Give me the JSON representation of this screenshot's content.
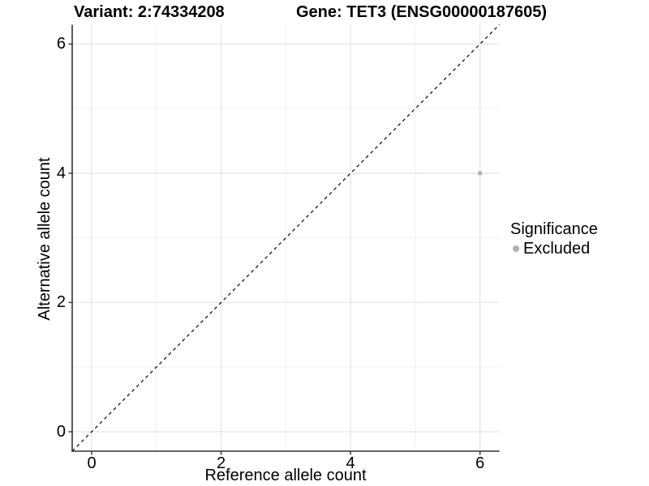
{
  "chart_data": {
    "type": "scatter",
    "titles": {
      "left": "Variant: 2:74334208",
      "right": "Gene: TET3 (ENSG00000187605)"
    },
    "xlabel": "Reference allele count",
    "ylabel": "Alternative allele count",
    "xlim": [
      -0.3,
      6.3
    ],
    "ylim": [
      -0.3,
      6.3
    ],
    "x_major_ticks": [
      0,
      2,
      4,
      6
    ],
    "y_major_ticks": [
      0,
      2,
      4,
      6
    ],
    "x_minor_ticks": [
      1,
      3,
      5
    ],
    "y_minor_ticks": [
      1,
      3,
      5
    ],
    "grid": "major+minor",
    "legend": {
      "title": "Significance",
      "position": "right",
      "items": [
        {
          "label": "Excluded",
          "color": "#afafaf"
        }
      ]
    },
    "series": [
      {
        "name": "Excluded",
        "color": "#b4b4b4",
        "points": [
          [
            6,
            4
          ]
        ]
      }
    ],
    "reference_line": {
      "style": "dashed",
      "slope": 1,
      "intercept": 0,
      "color": "#000000",
      "from": [
        -0.3,
        -0.3
      ],
      "to": [
        6.3,
        6.3
      ]
    }
  },
  "colors": {
    "background": "#ffffff",
    "grid_major": "#e4e4e4",
    "grid_minor": "#f0f0f0",
    "axis_line": "#333333",
    "text": "#000000"
  }
}
